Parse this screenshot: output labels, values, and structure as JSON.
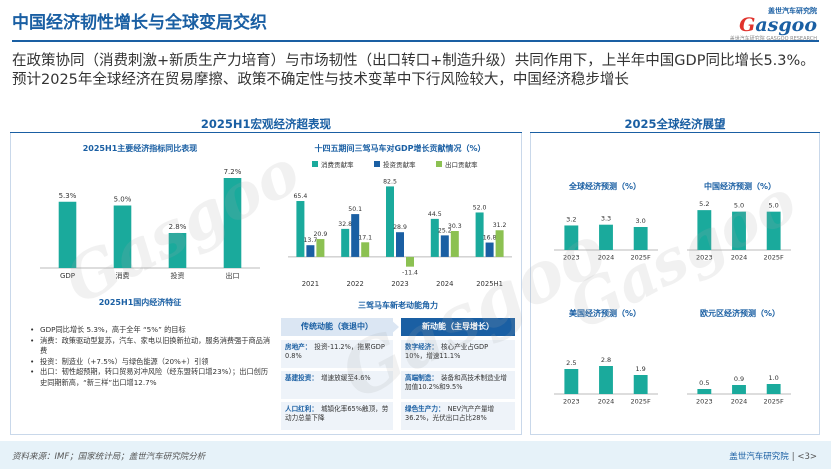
{
  "header": {
    "title": "中国经济韧性增长与全球变局交织",
    "logo_top": "盖世汽车研究院",
    "logo_word_g": "G",
    "logo_word_rest": "asgoo",
    "logo_sub": "盖世汽车研究院 GASGOO RESEARCH"
  },
  "summary": "在政策协同（消费刺激+新质生产力培育）与市场韧性（出口转口+制造升级）共同作用下，上半年中国GDP同比增长5.3%。预计2025年全球经济在贸易摩擦、政策不确定性与技术变革中下行风险较大，中国经济稳步增长",
  "left_panel": {
    "title": "2025H1宏观经济超表现",
    "features_title": "2025H1国内经济特征",
    "bullets": [
      "GDP同比增长 5.3%，高于全年 “5%” 的目标",
      "消费：政策驱动型复苏，汽车、家电以旧换新拉动，服务消费强于商品消费",
      "投资：制造业（+7.5%）与绿色能源（20%+）引领",
      "出口：韧性超预期，转口贸易对冲风险（经东盟转口增23%）；出口创历史同期新高，“新三样”出口增12.7%"
    ],
    "engine_title": "三驾马车新老动能角力",
    "old_head": "传统动能（衰退中）",
    "new_head": "新动能（主导增长）",
    "old_rows": [
      {
        "k": "房地产：",
        "v": "投资-11.2%，拖累GDP 0.8%"
      },
      {
        "k": "基建投资：",
        "v": "增速放缓至4.6%"
      },
      {
        "k": "人口红利：",
        "v": "城镇化率65%触顶，劳动力总量下降"
      }
    ],
    "new_rows": [
      {
        "k": "数字经济：",
        "v": "核心产业占GDP 10%，增速11.1%"
      },
      {
        "k": "高端制造：",
        "v": "装备和高技术制造业增加值10.2%和9.5%"
      },
      {
        "k": "绿色生产力：",
        "v": "NEV汽产产量增36.2%，光伏出口占比28%"
      }
    ]
  },
  "right_panel": {
    "title": "2025全球经济展望"
  },
  "chart_data": [
    {
      "id": "indicators",
      "type": "bar",
      "title": "2025H1主要经济指标同比表现",
      "categories": [
        "GDP",
        "消费",
        "投资",
        "出口"
      ],
      "values": [
        5.3,
        5.0,
        2.8,
        7.2
      ],
      "value_labels": [
        "5.3%",
        "5.0%",
        "2.8%",
        "7.2%"
      ],
      "ylim": [
        0,
        8
      ],
      "color": "#1aaa9c"
    },
    {
      "id": "troika",
      "type": "bar",
      "title": "十四五期间三驾马车对GDP增长贡献情况（%）",
      "categories": [
        "2021",
        "2022",
        "2023",
        "2024",
        "2025H1"
      ],
      "series": [
        {
          "name": "消费贡献率",
          "values": [
            65.4,
            32.8,
            82.5,
            44.5,
            52.0
          ],
          "color": "#1aaa9c"
        },
        {
          "name": "投资贡献率",
          "values": [
            13.7,
            50.1,
            28.9,
            25.2,
            16.8
          ],
          "color": "#1a5fa3"
        },
        {
          "name": "出口贡献率",
          "values": [
            20.9,
            17.1,
            -11.4,
            30.3,
            31.2
          ],
          "color": "#8cc152"
        }
      ],
      "ylim": [
        -20,
        90
      ]
    },
    {
      "id": "global",
      "type": "bar",
      "title": "全球经济预测（%）",
      "categories": [
        "2023",
        "2024",
        "2025F"
      ],
      "values": [
        3.2,
        3.3,
        3.0
      ],
      "ylim": [
        0,
        6
      ],
      "color": "#1aaa9c"
    },
    {
      "id": "china",
      "type": "bar",
      "title": "中国经济预测（%）",
      "categories": [
        "2023",
        "2024",
        "2025F"
      ],
      "values": [
        5.2,
        5.0,
        5.0
      ],
      "ylim": [
        0,
        6
      ],
      "color": "#1aaa9c"
    },
    {
      "id": "us",
      "type": "bar",
      "title": "美国经济预测（%）",
      "categories": [
        "2023",
        "2024",
        "2025F"
      ],
      "values": [
        2.5,
        2.8,
        1.9
      ],
      "ylim": [
        0,
        6
      ],
      "color": "#1aaa9c"
    },
    {
      "id": "euro",
      "type": "bar",
      "title": "欧元区经济预测（%）",
      "categories": [
        "2023",
        "2024",
        "2025F"
      ],
      "values": [
        0.5,
        0.9,
        1.0
      ],
      "ylim": [
        0,
        6
      ],
      "color": "#1aaa9c"
    }
  ],
  "footer": {
    "source": "资料来源：IMF；国家统计局；盖世汽车研究院分析",
    "org": "盖世汽车研究院",
    "page": "| <3>"
  },
  "watermark": {
    "word": "Gasgoo",
    "cn": "盖世汽车研究院"
  }
}
